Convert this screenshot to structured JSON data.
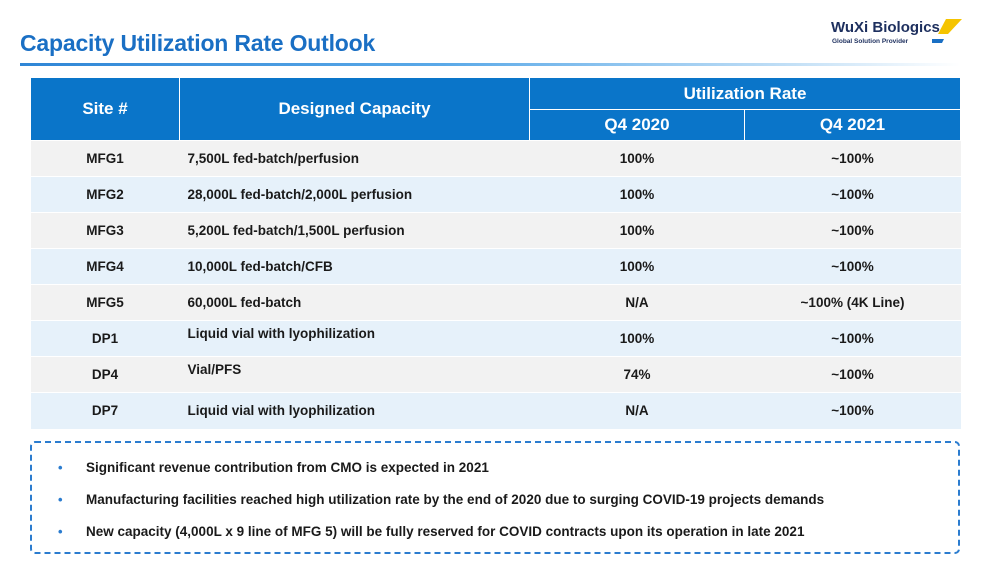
{
  "slide": {
    "title": "Capacity Utilization Rate Outlook"
  },
  "logo": {
    "name": "WuXi Biologics",
    "tagline": "Global Solution Provider",
    "colors": {
      "text": "#1d2f5e",
      "mark_yellow": "#f5c400",
      "mark_blue": "#1a6fc4"
    }
  },
  "colors": {
    "title": "#1a6fc4",
    "header_bg": "#0a75c9",
    "row_even": "#f2f2f2",
    "row_odd": "#e6f1fa",
    "notes_border": "#2b7ccf"
  },
  "table": {
    "headers": {
      "site": "Site #",
      "capacity": "Designed Capacity",
      "group": "Utilization Rate",
      "q4_2020": "Q4 2020",
      "q4_2021": "Q4 2021"
    },
    "rows": [
      {
        "site": "MFG1",
        "capacity": "7,500L fed-batch/perfusion",
        "q4_2020": "100%",
        "q4_2021": "~100%"
      },
      {
        "site": "MFG2",
        "capacity": "28,000L fed-batch/2,000L perfusion",
        "q4_2020": "100%",
        "q4_2021": "~100%"
      },
      {
        "site": "MFG3",
        "capacity": "5,200L fed-batch/1,500L perfusion",
        "q4_2020": "100%",
        "q4_2021": "~100%"
      },
      {
        "site": "MFG4",
        "capacity": "10,000L fed-batch/CFB",
        "q4_2020": "100%",
        "q4_2021": "~100%"
      },
      {
        "site": "MFG5",
        "capacity": "60,000L fed-batch",
        "q4_2020": "N/A",
        "q4_2021": "~100% (4K Line)"
      },
      {
        "site": "DP1",
        "capacity": "Liquid vial with lyophilization",
        "q4_2020": "100%",
        "q4_2021": "~100%"
      },
      {
        "site": "DP4",
        "capacity": "Vial/PFS",
        "q4_2020": "74%",
        "q4_2021": "~100%"
      },
      {
        "site": "DP7",
        "capacity": "Liquid vial with lyophilization",
        "q4_2020": "N/A",
        "q4_2021": "~100%"
      }
    ]
  },
  "notes": {
    "bullet": "•",
    "items": [
      "Significant revenue contribution from CMO is expected in 2021",
      "Manufacturing facilities reached high utilization rate by the end of 2020 due to surging COVID-19 projects demands",
      "New capacity (4,000L x 9 line of MFG 5) will be fully reserved for COVID contracts upon its operation in late 2021"
    ]
  }
}
